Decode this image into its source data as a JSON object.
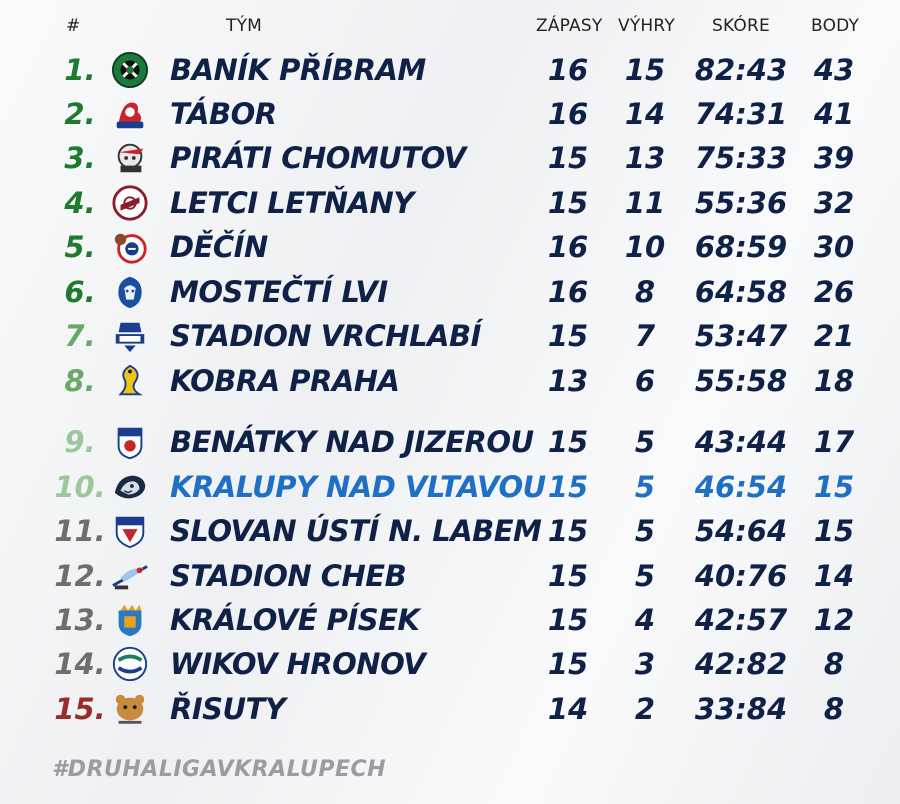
{
  "header": {
    "num": "#",
    "team": "TÝM",
    "matches": "ZÁPASY",
    "wins": "VÝHRY",
    "score": "SKÓRE",
    "points": "BODY"
  },
  "rows": [
    {
      "pos": "1.",
      "team": "BANÍK PŘÍBRAM",
      "matches": "16",
      "wins": "15",
      "score": "82:43",
      "points": "43",
      "pos_color": "#1e7a2e",
      "logo": "banik-pribram-logo"
    },
    {
      "pos": "2.",
      "team": "TÁBOR",
      "matches": "16",
      "wins": "14",
      "score": "74:31",
      "points": "41",
      "pos_color": "#1e7a2e",
      "logo": "tabor-logo"
    },
    {
      "pos": "3.",
      "team": "PIRÁTI CHOMUTOV",
      "matches": "15",
      "wins": "13",
      "score": "75:33",
      "points": "39",
      "pos_color": "#1e7a2e",
      "logo": "pirati-chomutov-logo"
    },
    {
      "pos": "4.",
      "team": "LETCI LETŇANY",
      "matches": "15",
      "wins": "11",
      "score": "55:36",
      "points": "32",
      "pos_color": "#1e7a2e",
      "logo": "letci-letnany-logo"
    },
    {
      "pos": "5.",
      "team": "DĚČÍN",
      "matches": "16",
      "wins": "10",
      "score": "68:59",
      "points": "30",
      "pos_color": "#1e7a2e",
      "logo": "decin-logo"
    },
    {
      "pos": "6.",
      "team": "MOSTEČTÍ LVI",
      "matches": "16",
      "wins": "8",
      "score": "64:58",
      "points": "26",
      "pos_color": "#1e7a2e",
      "logo": "mostecti-lvi-logo"
    },
    {
      "pos": "7.",
      "team": "STADION VRCHLABÍ",
      "matches": "15",
      "wins": "7",
      "score": "53:47",
      "points": "21",
      "pos_color": "#6aa86a",
      "logo": "vrchlabi-logo"
    },
    {
      "pos": "8.",
      "team": "KOBRA PRAHA",
      "matches": "13",
      "wins": "6",
      "score": "55:58",
      "points": "18",
      "pos_color": "#6aa86a",
      "logo": "kobra-praha-logo"
    },
    {
      "pos": "9.",
      "team": "BENÁTKY NAD JIZEROU",
      "matches": "15",
      "wins": "5",
      "score": "43:44",
      "points": "17",
      "pos_color": "#9cc79c",
      "logo": "benatky-logo"
    },
    {
      "pos": "10.",
      "team": "KRALUPY NAD VLTAVOU",
      "matches": "15",
      "wins": "5",
      "score": "46:54",
      "points": "15",
      "pos_color": "#9cc79c",
      "logo": "kralupy-logo",
      "highlight": true
    },
    {
      "pos": "11.",
      "team": "SLOVAN ÚSTÍ N. LABEM",
      "matches": "15",
      "wins": "5",
      "score": "54:64",
      "points": "15",
      "pos_color": "#6e6e6e",
      "logo": "slovan-usti-logo"
    },
    {
      "pos": "12.",
      "team": "STADION CHEB",
      "matches": "15",
      "wins": "5",
      "score": "40:76",
      "points": "14",
      "pos_color": "#6e6e6e",
      "logo": "cheb-logo"
    },
    {
      "pos": "13.",
      "team": "KRÁLOVÉ PÍSEK",
      "matches": "15",
      "wins": "4",
      "score": "42:57",
      "points": "12",
      "pos_color": "#6e6e6e",
      "logo": "pisek-logo"
    },
    {
      "pos": "14.",
      "team": "WIKOV HRONOV",
      "matches": "15",
      "wins": "3",
      "score": "42:82",
      "points": "8",
      "pos_color": "#6e6e6e",
      "logo": "hronov-logo"
    },
    {
      "pos": "15.",
      "team": "ŘISUTY",
      "matches": "14",
      "wins": "2",
      "score": "33:84",
      "points": "8",
      "pos_color": "#9b2c2c",
      "logo": "risuty-logo"
    }
  ],
  "hashtag": "#DRUHALIGAVKRALUPECH",
  "colors": {
    "text": "#0f2147",
    "highlight": "#1f6fc4",
    "green": "#1e7a2e",
    "light_green": "#6aa86a",
    "pale_green": "#9cc79c",
    "gray": "#6e6e6e",
    "red": "#9b2c2c"
  }
}
